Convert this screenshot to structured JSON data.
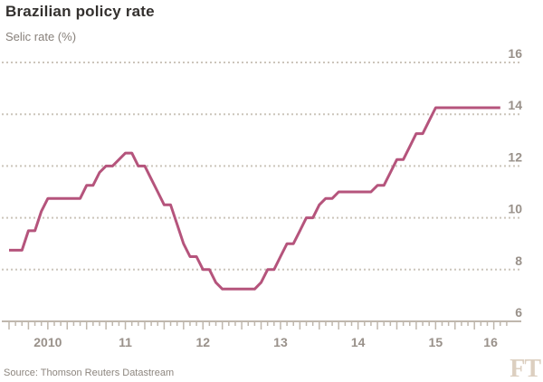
{
  "header": {
    "title": "Brazilian policy rate",
    "subtitle": "Selic rate (%)"
  },
  "footer": {
    "source": "Source: Thomson Reuters Datastream",
    "brand": "FT"
  },
  "colors": {
    "background": "#ffffff",
    "line": "#b5547c",
    "grid": "#ccc5bb",
    "axis": "#bfb7ad",
    "tick_label": "#99918a",
    "title": "#33302e",
    "subtitle": "#87807a",
    "source": "#8d867f",
    "brand": "#dccfc0"
  },
  "chart_data": {
    "type": "line",
    "title": "Brazilian policy rate",
    "ylabel": "Selic rate (%)",
    "frequency": "monthly",
    "x_start": "2010-01",
    "x_end": "2016-05",
    "x_tick_labels": [
      "2010",
      "11",
      "12",
      "13",
      "14",
      "15",
      "16"
    ],
    "y_ticks": [
      6,
      8,
      10,
      12,
      14,
      16
    ],
    "ylim": [
      6,
      16.8
    ],
    "y_axis_side": "right",
    "grid": "dotted-horizontal",
    "legend": "none",
    "line_style": "step-monthly",
    "series": [
      {
        "name": "Selic rate (%)",
        "values": [
          8.75,
          8.75,
          8.75,
          9.5,
          9.5,
          10.25,
          10.75,
          10.75,
          10.75,
          10.75,
          10.75,
          10.75,
          11.25,
          11.25,
          11.75,
          12.0,
          12.0,
          12.25,
          12.5,
          12.5,
          12.0,
          12.0,
          11.5,
          11.0,
          10.5,
          10.5,
          9.75,
          9.0,
          8.5,
          8.5,
          8.0,
          8.0,
          7.5,
          7.25,
          7.25,
          7.25,
          7.25,
          7.25,
          7.25,
          7.5,
          8.0,
          8.0,
          8.5,
          9.0,
          9.0,
          9.5,
          10.0,
          10.0,
          10.5,
          10.75,
          10.75,
          11.0,
          11.0,
          11.0,
          11.0,
          11.0,
          11.0,
          11.25,
          11.25,
          11.75,
          12.25,
          12.25,
          12.75,
          13.25,
          13.25,
          13.75,
          14.25,
          14.25,
          14.25,
          14.25,
          14.25,
          14.25,
          14.25,
          14.25,
          14.25,
          14.25,
          14.25
        ]
      }
    ],
    "key_rate_changes": [
      [
        "2010-01",
        8.75
      ],
      [
        "2010-04",
        9.5
      ],
      [
        "2010-06",
        10.25
      ],
      [
        "2010-07",
        10.75
      ],
      [
        "2011-01",
        11.25
      ],
      [
        "2011-03",
        11.75
      ],
      [
        "2011-04",
        12.0
      ],
      [
        "2011-06",
        12.25
      ],
      [
        "2011-07",
        12.5
      ],
      [
        "2011-09",
        12.0
      ],
      [
        "2011-11",
        11.5
      ],
      [
        "2011-12",
        11.0
      ],
      [
        "2012-01",
        10.5
      ],
      [
        "2012-03",
        9.75
      ],
      [
        "2012-04",
        9.0
      ],
      [
        "2012-05",
        8.5
      ],
      [
        "2012-07",
        8.0
      ],
      [
        "2012-09",
        7.5
      ],
      [
        "2012-10",
        7.25
      ],
      [
        "2013-04",
        7.5
      ],
      [
        "2013-05",
        8.0
      ],
      [
        "2013-07",
        8.5
      ],
      [
        "2013-08",
        9.0
      ],
      [
        "2013-10",
        9.5
      ],
      [
        "2013-11",
        10.0
      ],
      [
        "2014-01",
        10.5
      ],
      [
        "2014-02",
        10.75
      ],
      [
        "2014-04",
        11.0
      ],
      [
        "2014-10",
        11.25
      ],
      [
        "2014-12",
        11.75
      ],
      [
        "2015-01",
        12.25
      ],
      [
        "2015-03",
        12.75
      ],
      [
        "2015-04",
        13.25
      ],
      [
        "2015-06",
        13.75
      ],
      [
        "2015-07",
        14.25
      ]
    ]
  }
}
